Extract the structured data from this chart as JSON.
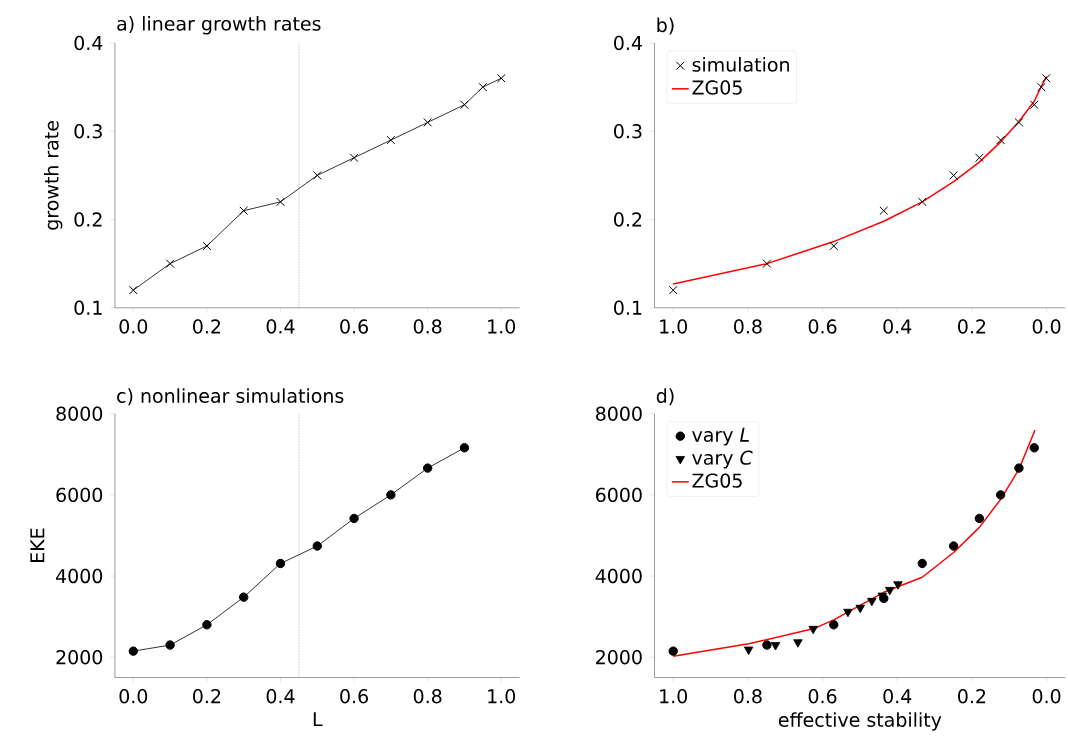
{
  "chart_data": [
    {
      "type": "line",
      "title": "a) linear growth rates",
      "ylabel": "growth rate",
      "x": [
        0.0,
        0.1,
        0.2,
        0.3,
        0.4,
        0.5,
        0.6,
        0.7,
        0.8,
        0.9,
        0.95,
        1.0
      ],
      "series": [
        {
          "color": "#000000",
          "marker": "cross",
          "values": [
            0.12,
            0.15,
            0.17,
            0.21,
            0.22,
            0.25,
            0.27,
            0.29,
            0.31,
            0.33,
            0.35,
            0.36
          ]
        }
      ],
      "xlim": [
        -0.05,
        1.05
      ],
      "ylim": [
        0.1,
        0.4
      ],
      "xticks": [
        {
          "value": 0,
          "label": "0.0"
        },
        {
          "value": 0.2,
          "label": "0.2"
        },
        {
          "value": 0.4,
          "label": "0.4"
        },
        {
          "value": 0.6,
          "label": "0.6"
        },
        {
          "value": 0.8,
          "label": "0.8"
        },
        {
          "value": 1,
          "label": "1.0"
        }
      ],
      "yticks": [
        {
          "value": 0.1,
          "label": "0.1"
        },
        {
          "value": 0.2,
          "label": "0.2"
        },
        {
          "value": 0.3,
          "label": "0.3"
        },
        {
          "value": 0.4,
          "label": "0.4"
        }
      ],
      "ref_lines": [
        {
          "axis": "x",
          "value": 0.45,
          "color": "#808080",
          "line_style": "dotted"
        }
      ],
      "legend": false
    },
    {
      "type": "scatter",
      "title": "b)",
      "series": [
        {
          "name": "simulation",
          "type": "scatter",
          "marker": "cross",
          "color": "#000000",
          "x": [
            1.0,
            0.749,
            0.57,
            0.436,
            0.333,
            0.249,
            0.18,
            0.123,
            0.074,
            0.033,
            0.014,
            0.001
          ],
          "values": [
            0.12,
            0.15,
            0.17,
            0.21,
            0.22,
            0.25,
            0.27,
            0.29,
            0.31,
            0.33,
            0.35,
            0.36
          ]
        },
        {
          "name": "ZG05",
          "type": "line",
          "marker": "none",
          "color": "#ff0000",
          "x": [
            1.0,
            0.749,
            0.57,
            0.436,
            0.333,
            0.249,
            0.18,
            0.123,
            0.074,
            0.033,
            0.014,
            0.0
          ],
          "values": [
            0.127,
            0.15,
            0.175,
            0.198,
            0.22,
            0.243,
            0.265,
            0.288,
            0.311,
            0.334,
            0.351,
            0.362
          ]
        }
      ],
      "xlim": [
        1.05,
        -0.05
      ],
      "ylim": [
        0.1,
        0.4
      ],
      "xticks": [
        {
          "value": 1,
          "label": "1.0"
        },
        {
          "value": 0.8,
          "label": "0.8"
        },
        {
          "value": 0.6,
          "label": "0.6"
        },
        {
          "value": 0.4,
          "label": "0.4"
        },
        {
          "value": 0.2,
          "label": "0.2"
        },
        {
          "value": 0,
          "label": "0.0"
        }
      ],
      "yticks": [
        {
          "value": 0.1,
          "label": "0.1"
        },
        {
          "value": 0.2,
          "label": "0.2"
        },
        {
          "value": 0.3,
          "label": "0.3"
        },
        {
          "value": 0.4,
          "label": "0.4"
        }
      ],
      "legend": "top left"
    },
    {
      "type": "line",
      "title": "c) nonlinear simulations",
      "ylabel": "EKE",
      "xlabel": "L",
      "x": [
        0.0,
        0.1,
        0.2,
        0.3,
        0.4,
        0.5,
        0.6,
        0.7,
        0.8,
        0.9
      ],
      "series": [
        {
          "color": "#000000",
          "marker": "circle",
          "values": [
            2150,
            2300,
            2800,
            3480,
            4310,
            4740,
            5420,
            6000,
            6660,
            7160
          ]
        }
      ],
      "xlim": [
        -0.05,
        1.05
      ],
      "ylim": [
        1500,
        8000
      ],
      "xticks": [
        {
          "value": 0,
          "label": "0.0"
        },
        {
          "value": 0.2,
          "label": "0.2"
        },
        {
          "value": 0.4,
          "label": "0.4"
        },
        {
          "value": 0.6,
          "label": "0.6"
        },
        {
          "value": 0.8,
          "label": "0.8"
        },
        {
          "value": 1,
          "label": "1.0"
        }
      ],
      "yticks": [
        2000,
        4000,
        6000,
        8000
      ],
      "ref_lines": [
        {
          "axis": "x",
          "value": 0.45,
          "color": "#808080",
          "line_style": "dotted"
        }
      ],
      "legend": false
    },
    {
      "type": "scatter",
      "title": "d)",
      "xlabel": "effective stability",
      "series": [
        {
          "name": "vary *L*",
          "type": "scatter",
          "marker": "circle",
          "color": "#000000",
          "x": [
            1.0,
            0.749,
            0.57,
            0.436,
            0.333,
            0.249,
            0.18,
            0.123,
            0.074,
            0.033
          ],
          "values": [
            2150,
            2300,
            2800,
            3450,
            4310,
            4740,
            5420,
            6000,
            6660,
            7160
          ]
        },
        {
          "name": "vary *C*",
          "type": "scatter",
          "marker": "triangle",
          "color": "#000000",
          "x": [
            0.798,
            0.726,
            0.666,
            0.625,
            0.532,
            0.499,
            0.468,
            0.44,
            0.42,
            0.398
          ],
          "values": [
            2190,
            2300,
            2370,
            2700,
            3120,
            3220,
            3390,
            3520,
            3660,
            3800
          ]
        },
        {
          "name": "ZG05",
          "type": "line",
          "marker": "none",
          "color": "#ff0000",
          "x": [
            1.0,
            0.798,
            0.625,
            0.57,
            0.436,
            0.333,
            0.249,
            0.18,
            0.123,
            0.074,
            0.031
          ],
          "values": [
            2025,
            2330,
            2700,
            2920,
            3600,
            3970,
            4580,
            5200,
            5890,
            6630,
            7600
          ]
        }
      ],
      "xlim": [
        1.05,
        -0.05
      ],
      "ylim": [
        1500,
        8000
      ],
      "xticks": [
        {
          "value": 1,
          "label": "1.0"
        },
        {
          "value": 0.8,
          "label": "0.8"
        },
        {
          "value": 0.6,
          "label": "0.6"
        },
        {
          "value": 0.4,
          "label": "0.4"
        },
        {
          "value": 0.2,
          "label": "0.2"
        },
        {
          "value": 0,
          "label": "0.0"
        }
      ],
      "yticks": [
        2000,
        4000,
        6000,
        8000
      ],
      "legend": "top left"
    }
  ]
}
